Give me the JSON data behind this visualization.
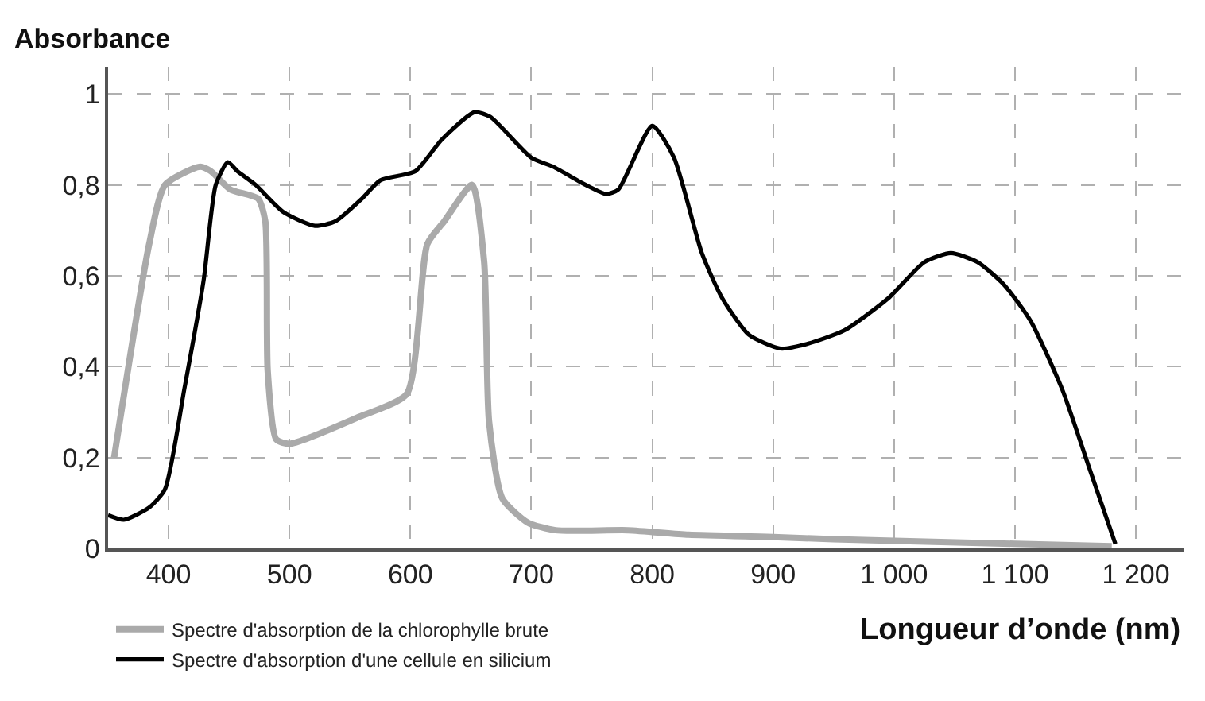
{
  "chart_data": {
    "type": "line",
    "xlabel": "Longueur d’onde (nm)",
    "ylabel": "Absorbance",
    "xlim": [
      350,
      1240
    ],
    "ylim": [
      0,
      1.06
    ],
    "xticks": [
      400,
      500,
      600,
      700,
      800,
      900,
      {
        "value": 1000,
        "label": "1 000"
      },
      {
        "value": 1100,
        "label": "1 100"
      },
      {
        "value": 1200,
        "label": "1 200"
      }
    ],
    "yticks": [
      0,
      {
        "value": 0.2,
        "label": "0,2"
      },
      {
        "value": 0.4,
        "label": "0,4"
      },
      {
        "value": 0.6,
        "label": "0,6"
      },
      {
        "value": 0.8,
        "label": "0,8"
      },
      1
    ],
    "grid": true,
    "legend": "bottom left",
    "marker": "none",
    "line_style": "solid",
    "series": [
      {
        "name": "Spectre d'absorption de la chlorophylle brute",
        "color": "#aaaaaa",
        "x": [
          355,
          384,
          397,
          426,
          435,
          451,
          474,
          480,
          482,
          489,
          500,
          558,
          597,
          614,
          628,
          651,
          661,
          665,
          676,
          697,
          720,
          780,
          830,
          900,
          950,
          1100,
          1180
        ],
        "values": [
          0.2,
          0.67,
          0.8,
          0.84,
          0.83,
          0.79,
          0.77,
          0.72,
          0.39,
          0.24,
          0.23,
          0.29,
          0.34,
          0.67,
          0.72,
          0.8,
          0.63,
          0.28,
          0.11,
          0.057,
          0.04,
          0.04,
          0.03,
          0.025,
          0.02,
          0.01,
          0.005
        ]
      },
      {
        "name": "Spectre d'absorption d'une cellule en silicium",
        "color": "#000000",
        "x": [
          350,
          363,
          384,
          397,
          413,
          429,
          439,
          449,
          457,
          472,
          495,
          521,
          538,
          560,
          575,
          604,
          626,
          653,
          666,
          700,
          718,
          745,
          762,
          772,
          800,
          818,
          841,
          858,
          880,
          906,
          928,
          959,
          995,
          1025,
          1047,
          1069,
          1091,
          1113,
          1139,
          1161,
          1183
        ],
        "values": [
          0.073,
          0.063,
          0.09,
          0.13,
          0.35,
          0.59,
          0.8,
          0.85,
          0.83,
          0.8,
          0.74,
          0.71,
          0.72,
          0.77,
          0.81,
          0.83,
          0.9,
          0.96,
          0.95,
          0.86,
          0.84,
          0.8,
          0.78,
          0.79,
          0.93,
          0.86,
          0.65,
          0.55,
          0.47,
          0.44,
          0.45,
          0.48,
          0.55,
          0.63,
          0.65,
          0.63,
          0.58,
          0.5,
          0.35,
          0.18,
          0.01
        ]
      }
    ]
  }
}
